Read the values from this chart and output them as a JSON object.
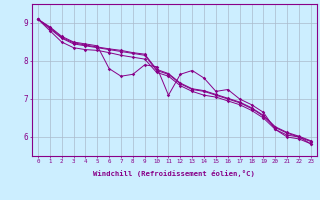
{
  "xlabel": "Windchill (Refroidissement éolien,°C)",
  "ylabel": "",
  "background_color": "#cceeff",
  "line_color": "#880088",
  "grid_color": "#aabbcc",
  "xlim": [
    -0.5,
    23.5
  ],
  "ylim": [
    5.5,
    9.5
  ],
  "xticks": [
    0,
    1,
    2,
    3,
    4,
    5,
    6,
    7,
    8,
    9,
    10,
    11,
    12,
    13,
    14,
    15,
    16,
    17,
    18,
    19,
    20,
    21,
    22,
    23
  ],
  "yticks": [
    6,
    7,
    8,
    9
  ],
  "line1": [
    9.1,
    8.9,
    8.65,
    8.5,
    8.45,
    8.4,
    7.8,
    7.6,
    7.65,
    7.9,
    7.85,
    7.1,
    7.65,
    7.75,
    7.55,
    7.2,
    7.25,
    7.0,
    6.85,
    6.65,
    6.2,
    6.05,
    6.0,
    5.82
  ],
  "line2": [
    9.1,
    8.8,
    8.5,
    8.35,
    8.3,
    8.28,
    8.22,
    8.15,
    8.1,
    8.05,
    7.7,
    7.6,
    7.35,
    7.2,
    7.1,
    7.05,
    6.95,
    6.85,
    6.7,
    6.5,
    6.2,
    6.0,
    5.95,
    5.82
  ],
  "line3": [
    9.1,
    8.85,
    8.6,
    8.45,
    8.4,
    8.35,
    8.3,
    8.25,
    8.2,
    8.15,
    7.75,
    7.65,
    7.4,
    7.25,
    7.2,
    7.1,
    7.0,
    6.9,
    6.75,
    6.55,
    6.25,
    6.1,
    6.0,
    5.88
  ],
  "line4": [
    9.1,
    8.88,
    8.62,
    8.48,
    8.42,
    8.37,
    8.32,
    8.28,
    8.22,
    8.18,
    7.78,
    7.67,
    7.42,
    7.27,
    7.22,
    7.12,
    7.02,
    6.92,
    6.77,
    6.57,
    6.27,
    6.12,
    6.02,
    5.9
  ]
}
